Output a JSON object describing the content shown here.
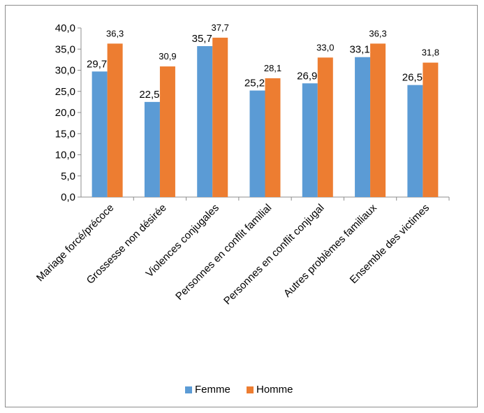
{
  "chart_data": {
    "type": "bar",
    "title": "",
    "xlabel": "",
    "ylabel": "",
    "ylim": [
      0,
      40
    ],
    "yticks": [
      "0,0",
      "5,0",
      "10,0",
      "15,0",
      "20,0",
      "25,0",
      "30,0",
      "35,0",
      "40,0"
    ],
    "grid": false,
    "legend_position": "bottom",
    "categories": [
      "Mariage forcé/précoce",
      "Grossesse non désirée",
      "Violences conjugales",
      "Personnes en conflit familial",
      "Personnes en conflit conjugal",
      "Autres problèmes familiaux",
      "Ensemble des victimes"
    ],
    "series": [
      {
        "name": "Femme",
        "color": "#5B9BD5",
        "values": [
          29.7,
          22.5,
          35.7,
          25.2,
          26.9,
          33.1,
          26.5
        ],
        "labels": [
          "29,7",
          "22,5",
          "35,7",
          "25,2",
          "26,9",
          "33,1",
          "26,5"
        ]
      },
      {
        "name": "Homme",
        "color": "#ED7D31",
        "values": [
          36.3,
          30.9,
          37.7,
          28.1,
          33.0,
          36.3,
          31.8
        ],
        "labels": [
          "36,3",
          "30,9",
          "37,7",
          "28,1",
          "33,0",
          "36,3",
          "31,8"
        ]
      }
    ]
  }
}
